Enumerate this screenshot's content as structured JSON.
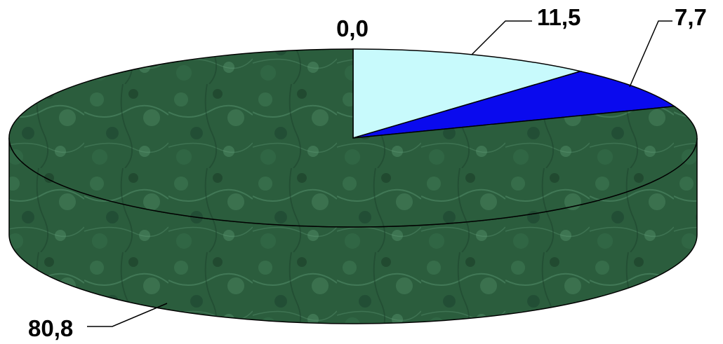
{
  "chart_data": {
    "type": "pie",
    "style": "3d",
    "title": "",
    "categories": [
      "",
      "",
      "",
      ""
    ],
    "values": [
      0.0,
      11.5,
      7.7,
      80.8
    ],
    "labels": [
      "0,0",
      "11,5",
      "7,7",
      "80,8"
    ],
    "colors": [
      "#bff4f6",
      "#c8fafc",
      "#0a0aee",
      "#2a5e3e"
    ],
    "start_angle_deg": 90,
    "direction": "clockwise",
    "legend": "none"
  }
}
